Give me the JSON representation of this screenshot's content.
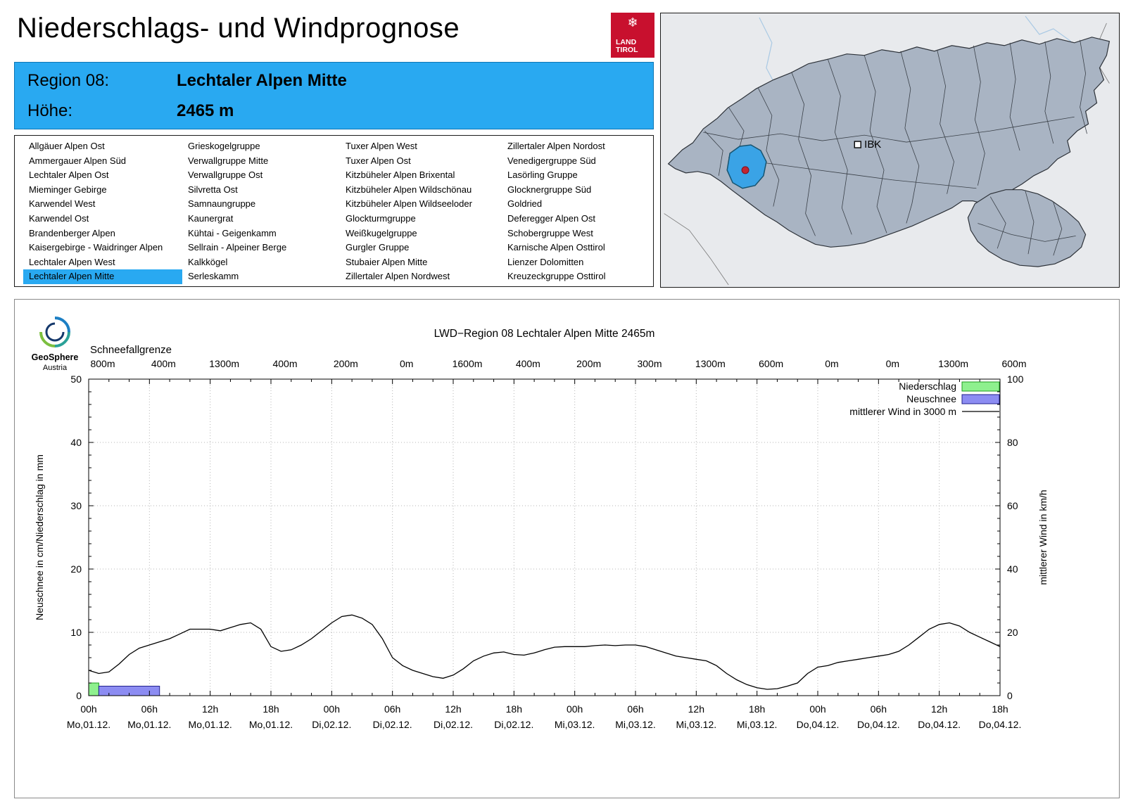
{
  "header": {
    "title": "Niederschlags- und Windprognose",
    "logo": {
      "snowflake": "❄",
      "line1": "LAND",
      "line2": "TIROL",
      "color": "#c8102e"
    }
  },
  "region_box": {
    "region_label": "Region 08:",
    "region_value": "Lechtaler Alpen Mitte",
    "altitude_label": "Höhe:",
    "altitude_value": "2465 m",
    "accent_color": "#29a9f1"
  },
  "region_list": {
    "selected": "Lechtaler Alpen Mitte",
    "columns": [
      [
        "Allgäuer Alpen Ost",
        "Ammergauer Alpen Süd",
        "Lechtaler Alpen Ost",
        "Mieminger Gebirge",
        "Karwendel West",
        "Karwendel Ost",
        "Brandenberger Alpen",
        "Kaisergebirge - Waidringer Alpen",
        "Lechtaler Alpen West",
        "Lechtaler Alpen Mitte"
      ],
      [
        "Grieskogelgruppe",
        "Verwallgruppe Mitte",
        "Verwallgruppe Ost",
        "Silvretta Ost",
        "Samnaungruppe",
        "Kaunergrat",
        "Kühtai - Geigenkamm",
        "Sellrain - Alpeiner Berge",
        "Kalkkögel",
        "Serleskamm"
      ],
      [
        "Tuxer Alpen West",
        "Tuxer Alpen Ost",
        "Kitzbüheler Alpen Brixental",
        "Kitzbüheler Alpen Wildschönau",
        "Kitzbüheler Alpen Wildseeloder",
        "Glockturmgruppe",
        "Weißkugelgruppe",
        "Gurgler Gruppe",
        "Stubaier Alpen Mitte",
        "Zillertaler Alpen Nordwest"
      ],
      [
        "Zillertaler Alpen Nordost",
        "Venedigergruppe Süd",
        "Lasörling Gruppe",
        "Glocknergruppe Süd",
        "Goldried",
        "Deferegger Alpen Ost",
        "Schobergruppe West",
        "Karnische Alpen Osttirol",
        "Lienzer Dolomitten",
        "Kreuzeckgruppe Osttirol"
      ]
    ]
  },
  "map": {
    "city_label": "IBK",
    "highlight_color": "#3aa3e6",
    "marker_color": "#c22531"
  },
  "chart_panel": {
    "logo_name": "GeoSphere",
    "logo_sub": "Austria"
  },
  "chart_data": {
    "type": "line",
    "title": "LWD−Region 08 Lechtaler Alpen Mitte 2465m",
    "snowline_title": "Schneefallgrenze",
    "snowline_labels": [
      "800m",
      "400m",
      "1300m",
      "400m",
      "200m",
      "0m",
      "1600m",
      "400m",
      "200m",
      "300m",
      "1300m",
      "600m",
      "0m",
      "0m",
      "1300m",
      "600m"
    ],
    "ylabel_left": "Neuschnee in cm/Niederschlag in mm",
    "ylabel_right": "mittlerer Wind in km/h",
    "ylim_left": [
      0,
      50
    ],
    "ylim_right": [
      0,
      100
    ],
    "yticks_left": [
      0,
      10,
      20,
      30,
      40,
      50
    ],
    "yticks_right": [
      0,
      20,
      40,
      60,
      80,
      100
    ],
    "grid": true,
    "x_hours_total": 90,
    "x_tick_step_h": 6,
    "x_tick_times": [
      "00h",
      "06h",
      "12h",
      "18h",
      "00h",
      "06h",
      "12h",
      "18h",
      "00h",
      "06h",
      "12h",
      "18h",
      "00h",
      "06h",
      "12h",
      "18h"
    ],
    "x_tick_dates": [
      "Mo,01.12.",
      "Mo,01.12.",
      "Mo,01.12.",
      "Mo,01.12.",
      "Di,02.12.",
      "Di,02.12.",
      "Di,02.12.",
      "Di,02.12.",
      "Mi,03.12.",
      "Mi,03.12.",
      "Mi,03.12.",
      "Mi,03.12.",
      "Do,04.12.",
      "Do,04.12.",
      "Do,04.12.",
      "Do,04.12."
    ],
    "legend": [
      {
        "label": "Niederschlag",
        "type": "box",
        "fill": "#8ef08e",
        "stroke": "#1e9e1e"
      },
      {
        "label": "Neuschnee",
        "type": "box",
        "fill": "#8c8cf2",
        "stroke": "#20208c"
      },
      {
        "label": "mittlerer Wind in 3000 m",
        "type": "line",
        "stroke": "#000000"
      }
    ],
    "bars": {
      "niederschlag_mm": [
        {
          "start_h": 0,
          "end_h": 1,
          "value": 2
        }
      ],
      "neuschnee_cm": [
        {
          "start_h": 1,
          "end_h": 7,
          "value": 1.5
        }
      ]
    },
    "series": [
      {
        "name": "mittlerer Wind in 3000 m",
        "axis": "right",
        "unit": "km/h",
        "start_hour": 0,
        "step_h": 1,
        "values": [
          8,
          7,
          7.5,
          10,
          13,
          15,
          16,
          17,
          18,
          19.5,
          21,
          21,
          21,
          20.5,
          21.5,
          22.5,
          23,
          21,
          15.5,
          14,
          14.5,
          16,
          18,
          20.5,
          23,
          25,
          25.5,
          24.5,
          22.5,
          18,
          12,
          9.5,
          8,
          7,
          6,
          5.5,
          6.5,
          8.5,
          11,
          12.5,
          13.5,
          13.8,
          13,
          12.8,
          13.5,
          14.5,
          15.3,
          15.5,
          15.5,
          15.5,
          15.8,
          16,
          15.8,
          16,
          16,
          15.5,
          14.5,
          13.5,
          12.5,
          12,
          11.5,
          11,
          9.5,
          7,
          5,
          3.5,
          2.5,
          2,
          2.2,
          3,
          4,
          7,
          9,
          9.5,
          10.5,
          11,
          11.5,
          12,
          12.5,
          13,
          14,
          16,
          18.5,
          21,
          22.5,
          23,
          22,
          20,
          18.5,
          17,
          15.5
        ]
      }
    ]
  }
}
